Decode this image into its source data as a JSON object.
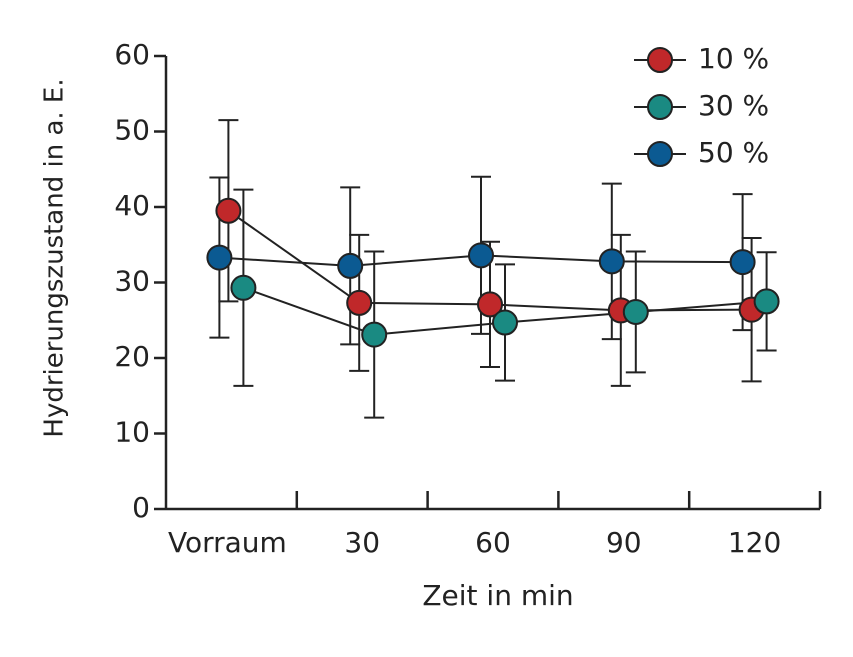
{
  "chart_data": {
    "type": "errorbar_line",
    "x_label": "Zeit in min",
    "y_label": "Hydrierungszustand in a. E.",
    "categories": [
      "Vorraum",
      "30",
      "60",
      "90",
      "120"
    ],
    "series": [
      {
        "name": "10 %",
        "color": "#c0282a",
        "values": [
          39.5,
          27.3,
          27.1,
          26.3,
          26.4
        ],
        "errors": [
          12,
          9,
          8.3,
          10,
          9.5
        ]
      },
      {
        "name": "30 %",
        "color": "#1a8a82",
        "values": [
          29.3,
          23.1,
          24.7,
          26.1,
          27.5
        ],
        "errors": [
          13,
          11,
          7.7,
          8,
          6.5
        ]
      },
      {
        "name": "50 %",
        "color": "#0b5a92",
        "values": [
          33.3,
          32.2,
          33.6,
          32.8,
          32.7
        ],
        "errors": [
          10.6,
          10.4,
          10.4,
          10.3,
          9
        ]
      }
    ],
    "ylim": [
      0,
      60
    ],
    "yticks": [
      0,
      10,
      20,
      30,
      40,
      50,
      60
    ],
    "legend": "top-right"
  }
}
